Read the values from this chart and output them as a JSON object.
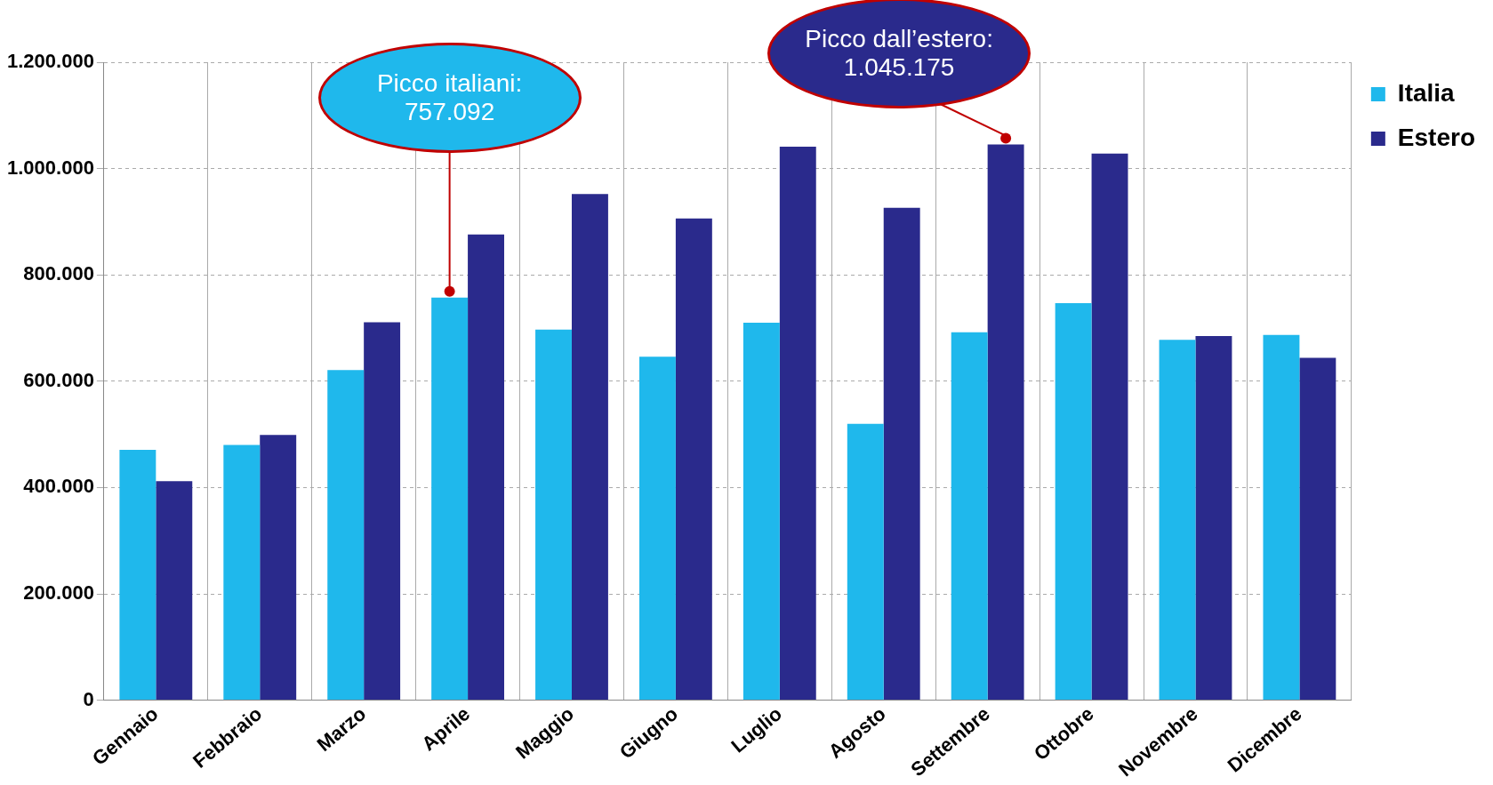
{
  "chart_data": {
    "type": "bar",
    "categories": [
      "Gennaio",
      "Febbraio",
      "Marzo",
      "Aprile",
      "Maggio",
      "Giugno",
      "Luglio",
      "Agosto",
      "Settembre",
      "Ottobre",
      "Novembre",
      "Dicembre"
    ],
    "series": [
      {
        "name": "Italia",
        "color": "#1fb8ec",
        "values": [
          471000,
          480000,
          621000,
          757092,
          697000,
          646000,
          710000,
          520000,
          692000,
          747000,
          678000,
          687000
        ]
      },
      {
        "name": "Estero",
        "color": "#2a2a8c",
        "values": [
          412000,
          499000,
          711000,
          876000,
          952000,
          906000,
          1041000,
          926000,
          1045175,
          1028000,
          685000,
          644000
        ]
      }
    ],
    "ylim": [
      0,
      1200000
    ],
    "yticks": [
      {
        "value": 0,
        "label": "0"
      },
      {
        "value": 200000,
        "label": "200.000"
      },
      {
        "value": 400000,
        "label": "400.000"
      },
      {
        "value": 600000,
        "label": "600.000"
      },
      {
        "value": 800000,
        "label": "800.000"
      },
      {
        "value": 1000000,
        "label": "1.000.000"
      },
      {
        "value": 1200000,
        "label": "1.200.000"
      }
    ],
    "grid": true,
    "legend": "top right",
    "annotations": [
      "Picco italiani:\n757.092",
      "Picco dall’estero:\n1.045.175"
    ]
  }
}
